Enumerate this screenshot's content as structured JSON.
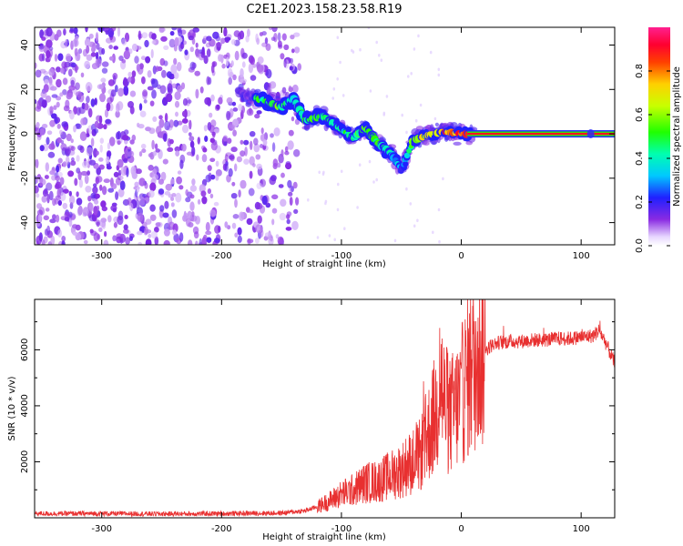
{
  "title": "C2E1.2023.158.23.58.R19",
  "chart_data": [
    {
      "type": "heatmap",
      "xlabel": "Height of straight line (km)",
      "ylabel": "Frequency (Hz)",
      "xlim": [
        -356,
        128
      ],
      "ylim": [
        -50,
        48
      ],
      "xticks": [
        -300,
        -200,
        -100,
        0,
        100
      ],
      "yticks": [
        -40,
        -20,
        0,
        20,
        40
      ],
      "xtick_labels": [
        "-300",
        "-200",
        "-100",
        "0",
        "100"
      ],
      "ytick_labels": [
        "-40",
        "-20",
        "0",
        "20",
        "40"
      ],
      "grid": false,
      "noise_region_km": [
        -356,
        -135
      ],
      "signal_track": [
        {
          "x": -165,
          "y": 15,
          "amp": 0.45
        },
        {
          "x": -150,
          "y": 12,
          "amp": 0.5
        },
        {
          "x": -140,
          "y": 16,
          "amp": 0.4
        },
        {
          "x": -130,
          "y": 6,
          "amp": 0.5
        },
        {
          "x": -115,
          "y": 8,
          "amp": 0.45
        },
        {
          "x": -100,
          "y": 2,
          "amp": 0.45
        },
        {
          "x": -90,
          "y": -2,
          "amp": 0.45
        },
        {
          "x": -80,
          "y": 3,
          "amp": 0.5
        },
        {
          "x": -70,
          "y": -4,
          "amp": 0.5
        },
        {
          "x": -60,
          "y": -8,
          "amp": 0.4
        },
        {
          "x": -50,
          "y": -16,
          "amp": 0.25
        },
        {
          "x": -40,
          "y": -3,
          "amp": 0.55
        },
        {
          "x": -30,
          "y": -1,
          "amp": 0.7
        },
        {
          "x": -15,
          "y": 1,
          "amp": 0.75
        },
        {
          "x": 0,
          "y": 0,
          "amp": 0.85
        },
        {
          "x": 50,
          "y": 0,
          "amp": 0.9
        },
        {
          "x": 128,
          "y": 0,
          "amp": 0.9
        }
      ],
      "carrier_line": {
        "x_start": 5,
        "x_end": 128,
        "y": 0,
        "amp": 0.9
      }
    },
    {
      "type": "colorbar",
      "label": "Normalized spectral amplitude",
      "range": [
        0,
        1
      ],
      "ticks": [
        0,
        0.2,
        0.4,
        0.6,
        0.8
      ],
      "tick_labels": [
        "0.0",
        "0.2",
        "0.4",
        "0.6",
        "0.8"
      ]
    },
    {
      "type": "line",
      "xlabel": "Height of straight line (km)",
      "ylabel": "SNR (10 * v/v)",
      "xlim": [
        -356,
        128
      ],
      "ylim": [
        0,
        7800
      ],
      "xticks": [
        -300,
        -200,
        -100,
        0,
        100
      ],
      "yticks": [
        2000,
        4000,
        6000
      ],
      "xtick_labels": [
        "-300",
        "-200",
        "-100",
        "0",
        "100"
      ],
      "ytick_labels": [
        "2000",
        "4000",
        "6000"
      ],
      "grid": false,
      "color": "#e83030",
      "series": [
        {
          "x": [
            -356,
            -300,
            -250,
            -200,
            -150,
            -130,
            -120,
            -110,
            -100,
            -90,
            -80,
            -70,
            -60,
            -50,
            -45,
            -40,
            -35,
            -30,
            -25,
            -20,
            -18,
            -15,
            -10,
            -5,
            0,
            5,
            10,
            15,
            20,
            25,
            30,
            40,
            50,
            60,
            70,
            80,
            90,
            100,
            110,
            115,
            120,
            128
          ],
          "y": [
            150,
            150,
            140,
            150,
            170,
            250,
            400,
            600,
            850,
            1000,
            1250,
            1300,
            1500,
            1700,
            1900,
            2000,
            2200,
            2700,
            3300,
            3900,
            5400,
            4200,
            3600,
            3900,
            4300,
            5000,
            5400,
            5800,
            6000,
            6150,
            6250,
            6300,
            6300,
            6350,
            6350,
            6400,
            6400,
            6450,
            6500,
            6700,
            6300,
            5500
          ]
        }
      ]
    }
  ]
}
